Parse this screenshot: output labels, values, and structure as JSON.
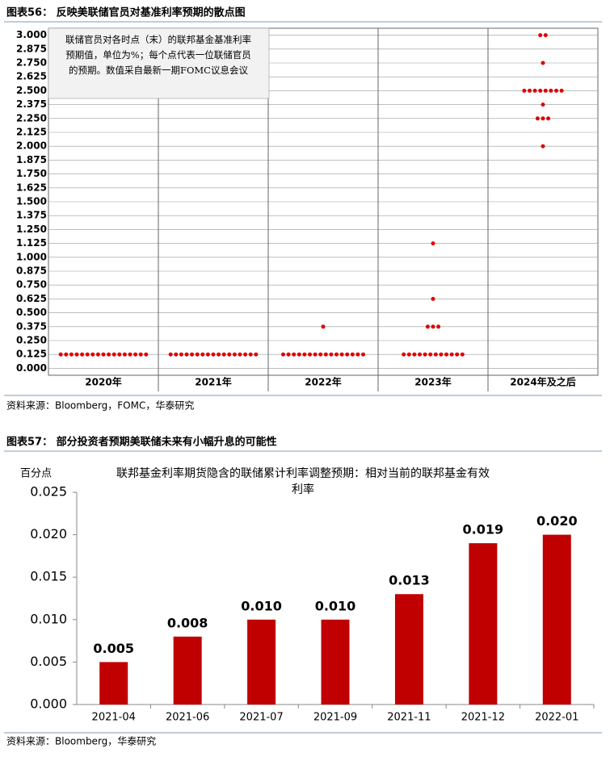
{
  "chart_data": [
    {
      "type": "dot",
      "caption": "图表56：  反映美联储官员对基准利率预期的散点图",
      "annotation": [
        "联储官员对各时点（末）的联邦基金基准利率",
        "预期值，单位为%；每个点代表一位联储官员",
        "的预期。数值采自最新一期FOMC议息会议"
      ],
      "categories": [
        "2020年",
        "2021年",
        "2022年",
        "2023年",
        "2024年及之后"
      ],
      "dots": [
        {
          "levels": [
            0.125
          ],
          "counts": [
            17
          ]
        },
        {
          "levels": [
            0.125
          ],
          "counts": [
            17
          ]
        },
        {
          "levels": [
            0.125,
            0.375
          ],
          "counts": [
            16,
            1
          ]
        },
        {
          "levels": [
            0.125,
            0.375,
            0.625,
            1.125
          ],
          "counts": [
            12,
            3,
            1,
            1
          ]
        },
        {
          "levels": [
            2.0,
            2.25,
            2.375,
            2.5,
            2.75,
            3.0
          ],
          "counts": [
            1,
            3,
            1,
            8,
            1,
            2
          ]
        }
      ],
      "color": "#e00000",
      "ylim": [
        -0.0625,
        3.0625
      ],
      "yticks": [
        {
          "value": 0,
          "label": "0.000"
        },
        {
          "value": 0.125,
          "label": "0.125"
        },
        {
          "value": 0.25,
          "label": "0.250"
        },
        {
          "value": 0.375,
          "label": "0.375"
        },
        {
          "value": 0.5,
          "label": "0.500"
        },
        {
          "value": 0.625,
          "label": "0.625"
        },
        {
          "value": 0.75,
          "label": "0.750"
        },
        {
          "value": 0.875,
          "label": "0.875"
        },
        {
          "value": 1,
          "label": "1.000"
        },
        {
          "value": 1.125,
          "label": "1.125"
        },
        {
          "value": 1.25,
          "label": "1.250"
        },
        {
          "value": 1.375,
          "label": "1.375"
        },
        {
          "value": 1.5,
          "label": "1.500"
        },
        {
          "value": 1.625,
          "label": "1.625"
        },
        {
          "value": 1.75,
          "label": "1.750"
        },
        {
          "value": 1.875,
          "label": "1.875"
        },
        {
          "value": 2,
          "label": "2.000"
        },
        {
          "value": 2.125,
          "label": "2.125"
        },
        {
          "value": 2.25,
          "label": "2.250"
        },
        {
          "value": 2.375,
          "label": "2.375"
        },
        {
          "value": 2.5,
          "label": "2.500"
        },
        {
          "value": 2.625,
          "label": "2.625"
        },
        {
          "value": 2.75,
          "label": "2.750"
        },
        {
          "value": 2.875,
          "label": "2.875"
        },
        {
          "value": 3,
          "label": "3.000"
        }
      ],
      "grid": true,
      "source": "资料来源：Bloomberg，FOMC，华泰研究"
    },
    {
      "type": "bar",
      "caption": "图表57：  部分投资者预期美联储未来有小幅升息的可能性",
      "title": [
        "联邦基金利率期货隐含的联储累计利率调整预期：相对当前的联邦基金有效",
        "利率"
      ],
      "y_label": "百分点",
      "categories": [
        "2021-04",
        "2021-06",
        "2021-07",
        "2021-09",
        "2021-11",
        "2021-12",
        "2022-01"
      ],
      "values": [
        0.005,
        0.008,
        0.01,
        0.01,
        0.013,
        0.019,
        0.02
      ],
      "value_labels": [
        "0.005",
        "0.008",
        "0.010",
        "0.010",
        "0.013",
        "0.019",
        "0.020"
      ],
      "color": "#c00000",
      "ylim": [
        0,
        0.025
      ],
      "yticks": [
        {
          "value": 0,
          "label": "0.000"
        },
        {
          "value": 0.005,
          "label": "0.005"
        },
        {
          "value": 0.01,
          "label": "0.010"
        },
        {
          "value": 0.015,
          "label": "0.015"
        },
        {
          "value": 0.02,
          "label": "0.020"
        },
        {
          "value": 0.025,
          "label": "0.025"
        }
      ],
      "source": "资料来源：Bloomberg，华泰研究"
    }
  ]
}
